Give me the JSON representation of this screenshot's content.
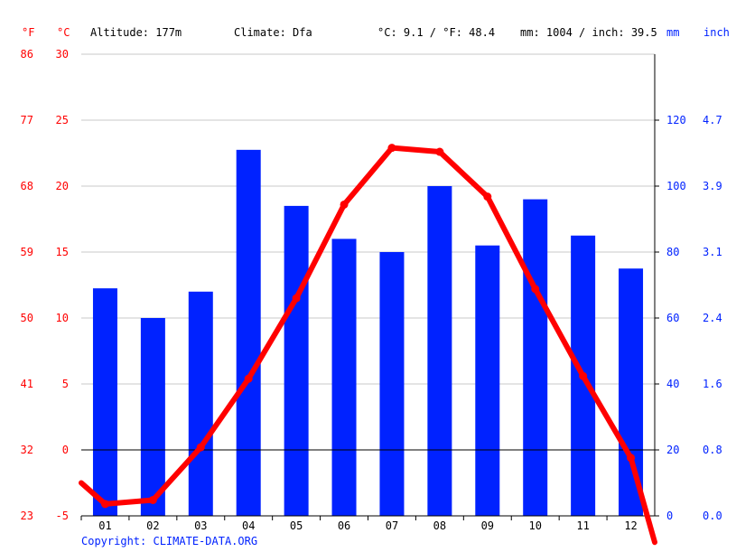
{
  "header": {
    "unit_f": "°F",
    "unit_c": "°C",
    "altitude": "Altitude: 177m",
    "climate": "Climate: Dfa",
    "avg_temp": "°C: 9.1 / °F: 48.4",
    "precip": "mm: 1004 / inch: 39.5",
    "unit_mm": "mm",
    "unit_inch": "inch"
  },
  "copyright": "Copyright: CLIMATE-DATA.ORG",
  "colors": {
    "temp": "#ff0000",
    "precip": "#0022ff",
    "text": "#000000",
    "grid": "#c8c8c8",
    "axis": "#000000"
  },
  "chart_data": {
    "type": "bar+line",
    "categories": [
      "01",
      "02",
      "03",
      "04",
      "05",
      "06",
      "07",
      "08",
      "09",
      "10",
      "11",
      "12"
    ],
    "series": [
      {
        "type": "bar",
        "axis": "right",
        "values": [
          69,
          60,
          68,
          111,
          94,
          84,
          80,
          100,
          82,
          96,
          85,
          75
        ]
      },
      {
        "type": "line",
        "axis": "left",
        "values": [
          -4.1,
          -3.8,
          0.2,
          5.4,
          11.5,
          18.6,
          22.9,
          22.6,
          19.2,
          12.2,
          5.6,
          -0.6
        ],
        "edge_values": [
          -2.5,
          -7.0
        ]
      }
    ],
    "y_left": {
      "unit": "°C",
      "range": [
        -5,
        30
      ],
      "ticks": [
        -5,
        0,
        5,
        10,
        15,
        20,
        25,
        30
      ],
      "ticks_f": [
        23,
        32,
        41,
        50,
        59,
        68,
        77,
        86
      ]
    },
    "y_right": {
      "unit": "mm",
      "range": [
        0,
        140
      ],
      "ticks": [
        0,
        20,
        40,
        60,
        80,
        100,
        120
      ],
      "ticks_inch": [
        "0.0",
        "0.8",
        "1.6",
        "2.4",
        "3.1",
        "3.9",
        "4.7"
      ]
    },
    "grid": true
  }
}
